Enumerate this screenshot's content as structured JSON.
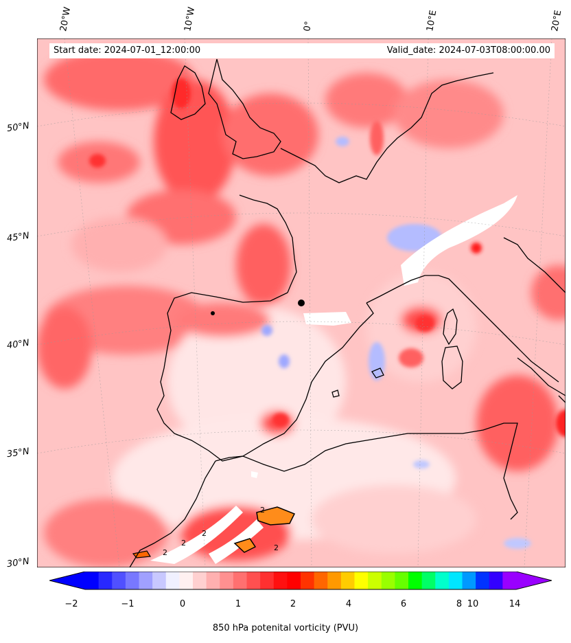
{
  "map": {
    "start_date": "Start date: 2024-07-01_12:00:00",
    "valid_date": "Valid_date: 2024-07-03T08:00:00.00",
    "lon_labels": [
      "20°W",
      "10°W",
      "0°",
      "10°E",
      "20°E"
    ],
    "lat_labels": [
      "50°N",
      "45°N",
      "40°N",
      "35°N",
      "30°N"
    ],
    "region": "Western Mediterranean / Iberia",
    "colors": {
      "background": "#ffd6d6",
      "positive": "#ff5a5a",
      "strong": "#ff2020",
      "negative": "#aab4ff",
      "orange": "#ff8c1a",
      "coast": "#000000"
    },
    "contour_labels": [
      "2",
      "2",
      "2",
      "2",
      "2"
    ]
  },
  "colorbar": {
    "ticks": [
      "−2",
      "−1",
      "0",
      "1",
      "2",
      "4",
      "6",
      "8",
      "10",
      "14"
    ],
    "label": "850 hPa potenital vorticity (PVU)",
    "colors": [
      "#0000ff",
      "#2828ff",
      "#5050ff",
      "#7878ff",
      "#a0a0ff",
      "#c8c8ff",
      "#f0f0ff",
      "#fff0f0",
      "#ffd0d0",
      "#ffb0b0",
      "#ff9090",
      "#ff7070",
      "#ff5050",
      "#ff3030",
      "#ff1010",
      "#ff0000",
      "#ff3300",
      "#ff6600",
      "#ff9900",
      "#ffcc00",
      "#ffff00",
      "#ccff00",
      "#99ff00",
      "#66ff00",
      "#00ff00",
      "#00ff66",
      "#00ffcc",
      "#00e6ff",
      "#0099ff",
      "#0033ff",
      "#3300ff",
      "#9900ff"
    ]
  }
}
